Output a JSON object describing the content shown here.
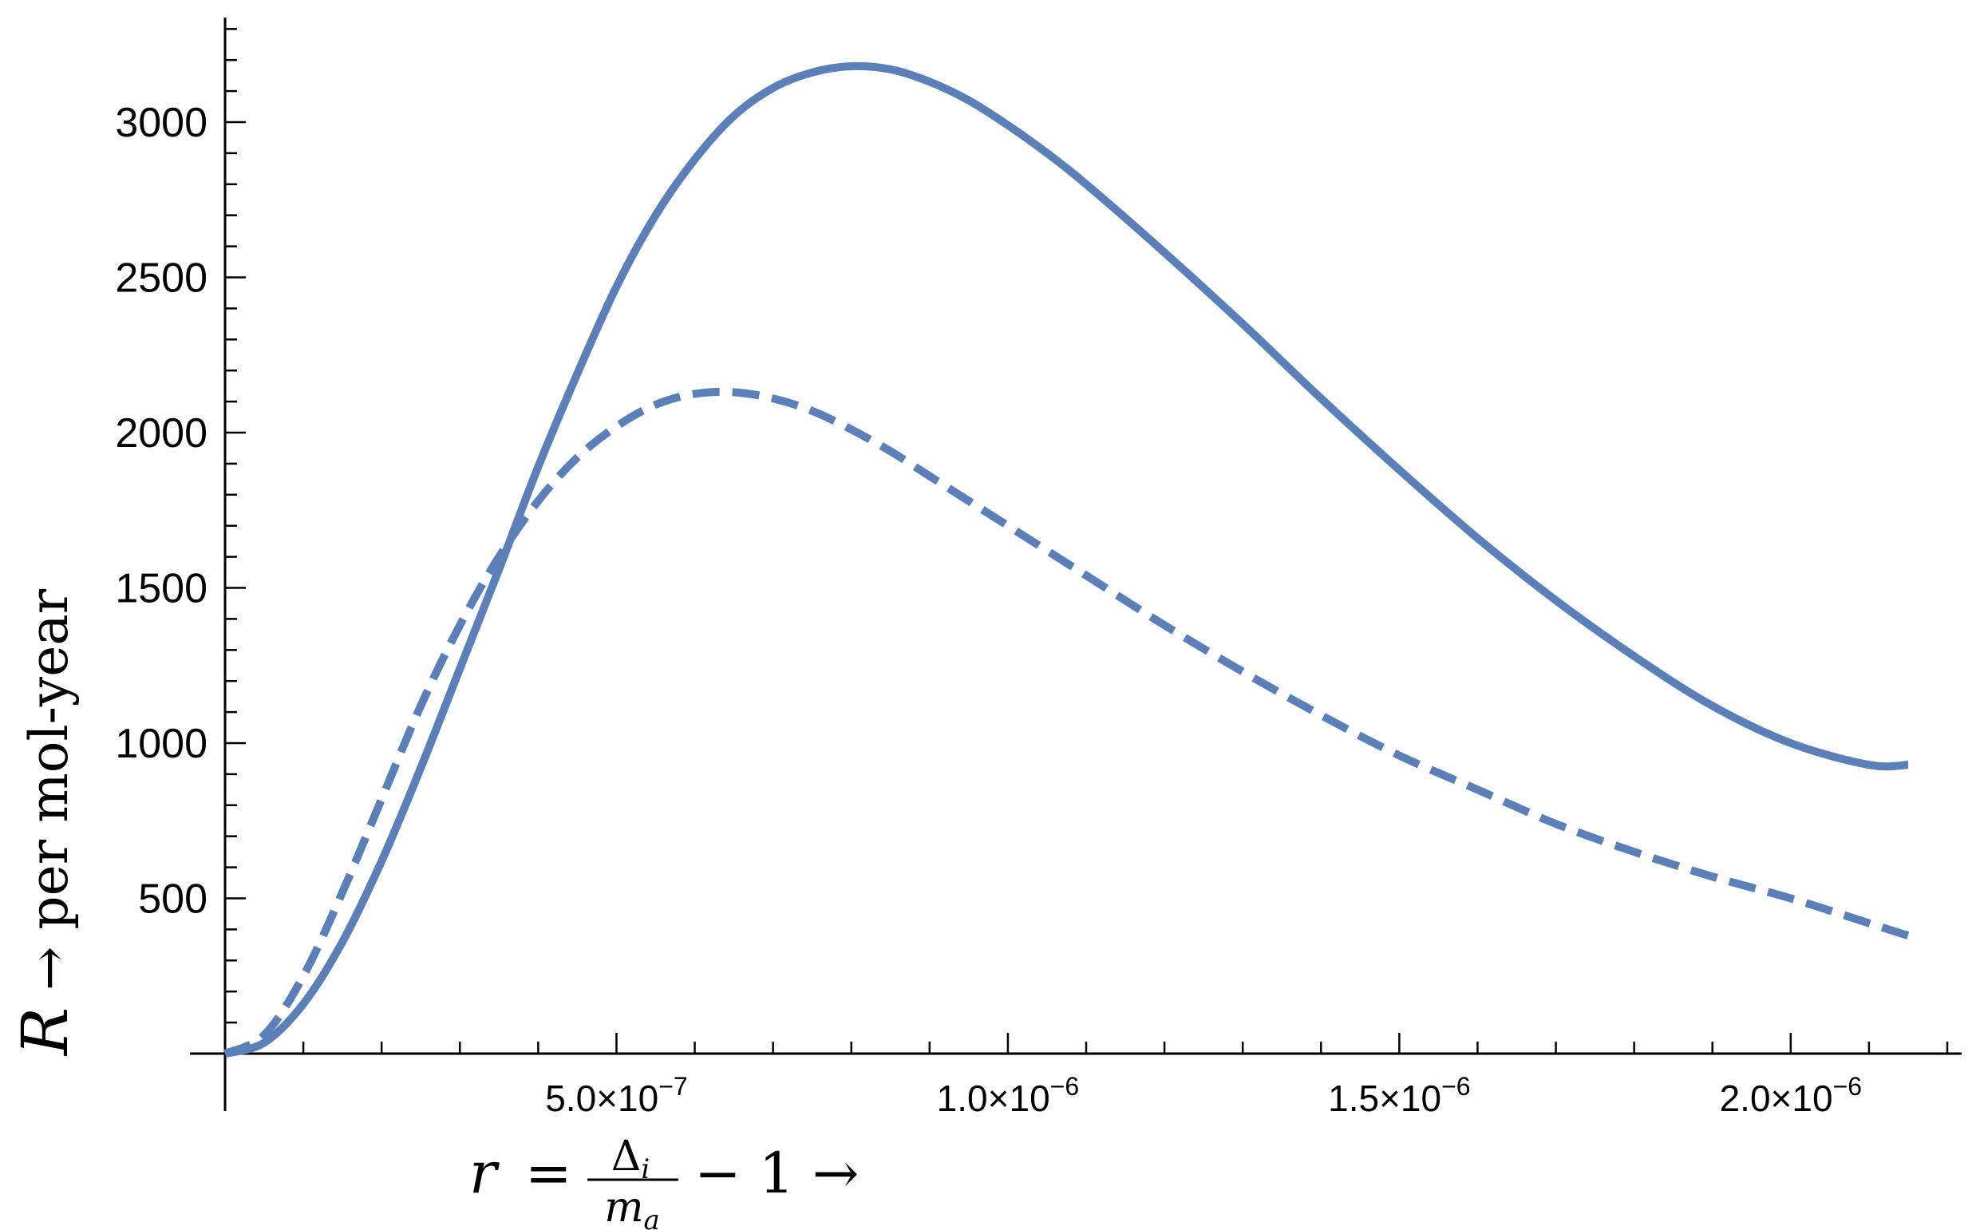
{
  "chart_data": {
    "type": "line",
    "title": "",
    "xlabel": {
      "var": "r",
      "eq": "=",
      "num": "Δ",
      "num_sub": "i",
      "den": "m",
      "den_sub": "a",
      "rest": "− 1 →"
    },
    "ylabel": {
      "var": "R",
      "rest": " → per mol-year"
    },
    "xlim": [
      0,
      2.2e-06
    ],
    "ylim": [
      0,
      3300
    ],
    "x_ticks": [
      {
        "value": 5e-07,
        "mant": "5.0",
        "exp": "−7"
      },
      {
        "value": 1e-06,
        "mant": "1.0",
        "exp": "−6"
      },
      {
        "value": 1.5e-06,
        "mant": "1.5",
        "exp": "−6"
      },
      {
        "value": 2e-06,
        "mant": "2.0",
        "exp": "−6"
      }
    ],
    "y_ticks": [
      {
        "value": 500,
        "label": "500"
      },
      {
        "value": 1000,
        "label": "1000"
      },
      {
        "value": 1500,
        "label": "1500"
      },
      {
        "value": 2000,
        "label": "2000"
      },
      {
        "value": 2500,
        "label": "2500"
      },
      {
        "value": 3000,
        "label": "3000"
      }
    ],
    "series_color": "#5b7fb8",
    "series": [
      {
        "style": "solid",
        "x": [
          0,
          5e-08,
          1e-07,
          1.5e-07,
          2e-07,
          2.5e-07,
          3e-07,
          3.5e-07,
          4e-07,
          4.5e-07,
          5e-07,
          5.5e-07,
          6e-07,
          6.5e-07,
          7e-07,
          7.5e-07,
          8e-07,
          8.5e-07,
          9e-07,
          9.5e-07,
          1e-06,
          1.05e-06,
          1.1e-06,
          1.2e-06,
          1.3e-06,
          1.4e-06,
          1.5e-06,
          1.6e-06,
          1.7e-06,
          1.8e-06,
          1.9e-06,
          2e-06,
          2.1e-06,
          2.15e-06
        ],
        "values": [
          0,
          35,
          160,
          360,
          620,
          920,
          1240,
          1560,
          1890,
          2190,
          2470,
          2700,
          2880,
          3020,
          3110,
          3160,
          3180,
          3170,
          3130,
          3070,
          2990,
          2900,
          2800,
          2580,
          2350,
          2110,
          1880,
          1660,
          1460,
          1280,
          1120,
          1000,
          930,
          930
        ]
      },
      {
        "style": "dashed",
        "x": [
          0,
          5e-08,
          1e-07,
          1.5e-07,
          2e-07,
          2.5e-07,
          3e-07,
          3.5e-07,
          4e-07,
          4.5e-07,
          5e-07,
          5.5e-07,
          6e-07,
          6.5e-07,
          7e-07,
          7.5e-07,
          8e-07,
          8.5e-07,
          9e-07,
          9.5e-07,
          1e-06,
          1.1e-06,
          1.2e-06,
          1.3e-06,
          1.4e-06,
          1.5e-06,
          1.6e-06,
          1.7e-06,
          1.8e-06,
          1.9e-06,
          2e-06,
          2.1e-06,
          2.15e-06
        ],
        "values": [
          0,
          60,
          250,
          520,
          820,
          1120,
          1380,
          1600,
          1780,
          1920,
          2020,
          2090,
          2125,
          2130,
          2110,
          2070,
          2010,
          1940,
          1860,
          1780,
          1700,
          1540,
          1380,
          1230,
          1090,
          960,
          850,
          740,
          650,
          570,
          500,
          420,
          380
        ]
      }
    ]
  }
}
